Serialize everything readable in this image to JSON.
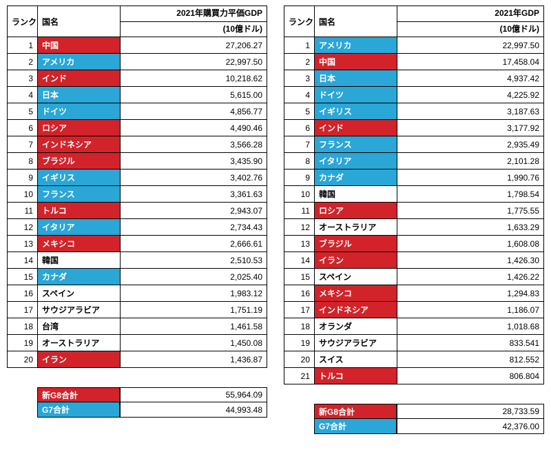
{
  "colors": {
    "red": "#d2232a",
    "blue": "#2aa6d7",
    "white": "#ffffff",
    "border": "#000000"
  },
  "headers": {
    "rank": "ランク",
    "country": "国名"
  },
  "left": {
    "valueHeaderLine1": "2021年購買力平価GDP",
    "valueHeaderLine2": "(10億ドル)",
    "rows": [
      {
        "rank": 1,
        "country": "中国",
        "value": "27,206.27",
        "hl": "red"
      },
      {
        "rank": 2,
        "country": "アメリカ",
        "value": "22,997.50",
        "hl": "blue"
      },
      {
        "rank": 3,
        "country": "インド",
        "value": "10,218.62",
        "hl": "red"
      },
      {
        "rank": 4,
        "country": "日本",
        "value": "5,615.00",
        "hl": "blue"
      },
      {
        "rank": 5,
        "country": "ドイツ",
        "value": "4,856.77",
        "hl": "blue"
      },
      {
        "rank": 6,
        "country": "ロシア",
        "value": "4,490.46",
        "hl": "red"
      },
      {
        "rank": 7,
        "country": "インドネシア",
        "value": "3,566.28",
        "hl": "red"
      },
      {
        "rank": 8,
        "country": "ブラジル",
        "value": "3,435.90",
        "hl": "red"
      },
      {
        "rank": 9,
        "country": "イギリス",
        "value": "3,402.76",
        "hl": "blue"
      },
      {
        "rank": 10,
        "country": "フランス",
        "value": "3,361.63",
        "hl": "blue"
      },
      {
        "rank": 11,
        "country": "トルコ",
        "value": "2,943.07",
        "hl": "red"
      },
      {
        "rank": 12,
        "country": "イタリア",
        "value": "2,734.43",
        "hl": "blue"
      },
      {
        "rank": 13,
        "country": "メキシコ",
        "value": "2,666.61",
        "hl": "red"
      },
      {
        "rank": 14,
        "country": "韓国",
        "value": "2,510.53",
        "hl": "none"
      },
      {
        "rank": 15,
        "country": "カナダ",
        "value": "2,025.40",
        "hl": "blue"
      },
      {
        "rank": 16,
        "country": "スペイン",
        "value": "1,983.12",
        "hl": "none"
      },
      {
        "rank": 17,
        "country": "サウジアラビア",
        "value": "1,751.19",
        "hl": "none"
      },
      {
        "rank": 18,
        "country": "台湾",
        "value": "1,461.58",
        "hl": "none"
      },
      {
        "rank": 19,
        "country": "オーストラリア",
        "value": "1,450.08",
        "hl": "none"
      },
      {
        "rank": 20,
        "country": "イラン",
        "value": "1,436.87",
        "hl": "red"
      }
    ],
    "summary": [
      {
        "label": "新G8合計",
        "value": "55,964.09",
        "hl": "red"
      },
      {
        "label": "G7合計",
        "value": "44,993.48",
        "hl": "blue"
      }
    ]
  },
  "right": {
    "valueHeaderLine1": "2021年GDP",
    "valueHeaderLine2": "(10億ドル)",
    "rows": [
      {
        "rank": 1,
        "country": "アメリカ",
        "value": "22,997.50",
        "hl": "blue"
      },
      {
        "rank": 2,
        "country": "中国",
        "value": "17,458.04",
        "hl": "red"
      },
      {
        "rank": 3,
        "country": "日本",
        "value": "4,937.42",
        "hl": "blue"
      },
      {
        "rank": 4,
        "country": "ドイツ",
        "value": "4,225.92",
        "hl": "blue"
      },
      {
        "rank": 5,
        "country": "イギリス",
        "value": "3,187.63",
        "hl": "blue"
      },
      {
        "rank": 6,
        "country": "インド",
        "value": "3,177.92",
        "hl": "red"
      },
      {
        "rank": 7,
        "country": "フランス",
        "value": "2,935.49",
        "hl": "blue"
      },
      {
        "rank": 8,
        "country": "イタリア",
        "value": "2,101.28",
        "hl": "blue"
      },
      {
        "rank": 9,
        "country": "カナダ",
        "value": "1,990.76",
        "hl": "blue"
      },
      {
        "rank": 10,
        "country": "韓国",
        "value": "1,798.54",
        "hl": "none"
      },
      {
        "rank": 11,
        "country": "ロシア",
        "value": "1,775.55",
        "hl": "red"
      },
      {
        "rank": 12,
        "country": "オーストラリア",
        "value": "1,633.29",
        "hl": "none"
      },
      {
        "rank": 13,
        "country": "ブラジル",
        "value": "1,608.08",
        "hl": "red"
      },
      {
        "rank": 14,
        "country": "イラン",
        "value": "1,426.30",
        "hl": "red"
      },
      {
        "rank": 15,
        "country": "スペイン",
        "value": "1,426.22",
        "hl": "none"
      },
      {
        "rank": 16,
        "country": "メキシコ",
        "value": "1,294.83",
        "hl": "red"
      },
      {
        "rank": 17,
        "country": "インドネシア",
        "value": "1,186.07",
        "hl": "red"
      },
      {
        "rank": 18,
        "country": "オランダ",
        "value": "1,018.68",
        "hl": "none"
      },
      {
        "rank": 19,
        "country": "サウジアラビア",
        "value": "833.541",
        "hl": "none"
      },
      {
        "rank": 20,
        "country": "スイス",
        "value": "812.552",
        "hl": "none"
      },
      {
        "rank": 21,
        "country": "トルコ",
        "value": "806.804",
        "hl": "red"
      }
    ],
    "summary": [
      {
        "label": "新G8合計",
        "value": "28,733.59",
        "hl": "red"
      },
      {
        "label": "G7合計",
        "value": "42,376.00",
        "hl": "blue"
      }
    ]
  }
}
